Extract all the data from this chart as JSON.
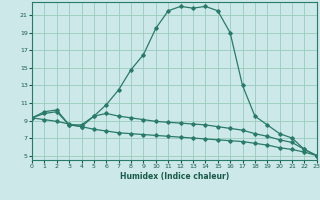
{
  "xlabel": "Humidex (Indice chaleur)",
  "bg_color": "#cce8e8",
  "grid_color": "#99ccbb",
  "line_color": "#2a7a6a",
  "x_ticks": [
    0,
    1,
    2,
    3,
    4,
    5,
    6,
    7,
    8,
    9,
    10,
    11,
    12,
    13,
    14,
    15,
    16,
    17,
    18,
    19,
    20,
    21,
    22,
    23
  ],
  "y_ticks": [
    5,
    7,
    9,
    11,
    13,
    15,
    17,
    19,
    21
  ],
  "xlim": [
    0,
    23
  ],
  "ylim": [
    4.5,
    22.5
  ],
  "line1_x": [
    0,
    1,
    2,
    3,
    4,
    5,
    6,
    7,
    8,
    9,
    10,
    11,
    12,
    13,
    14,
    15,
    16,
    17,
    18,
    19,
    20,
    21,
    22,
    23
  ],
  "line1_y": [
    9.3,
    10.0,
    10.2,
    8.5,
    8.3,
    9.5,
    10.8,
    12.5,
    14.8,
    16.5,
    19.5,
    21.5,
    22.0,
    21.8,
    22.0,
    21.5,
    19.0,
    13.0,
    9.5,
    8.5,
    7.5,
    7.0,
    5.7,
    5.0
  ],
  "line2_x": [
    0,
    1,
    2,
    3,
    4,
    5,
    6,
    7,
    8,
    9,
    10,
    11,
    12,
    13,
    14,
    15,
    16,
    17,
    18,
    19,
    20,
    21,
    22,
    23
  ],
  "line2_y": [
    9.3,
    9.8,
    10.0,
    8.5,
    8.5,
    9.5,
    9.8,
    9.5,
    9.3,
    9.1,
    8.9,
    8.8,
    8.7,
    8.6,
    8.5,
    8.3,
    8.1,
    7.9,
    7.5,
    7.2,
    6.8,
    6.5,
    5.7,
    5.0
  ],
  "line3_x": [
    0,
    1,
    2,
    3,
    4,
    5,
    6,
    7,
    8,
    9,
    10,
    11,
    12,
    13,
    14,
    15,
    16,
    17,
    18,
    19,
    20,
    21,
    22,
    23
  ],
  "line3_y": [
    9.3,
    9.1,
    8.9,
    8.6,
    8.3,
    8.0,
    7.8,
    7.6,
    7.5,
    7.4,
    7.3,
    7.2,
    7.1,
    7.0,
    6.9,
    6.8,
    6.7,
    6.6,
    6.4,
    6.2,
    5.9,
    5.7,
    5.4,
    5.0
  ]
}
